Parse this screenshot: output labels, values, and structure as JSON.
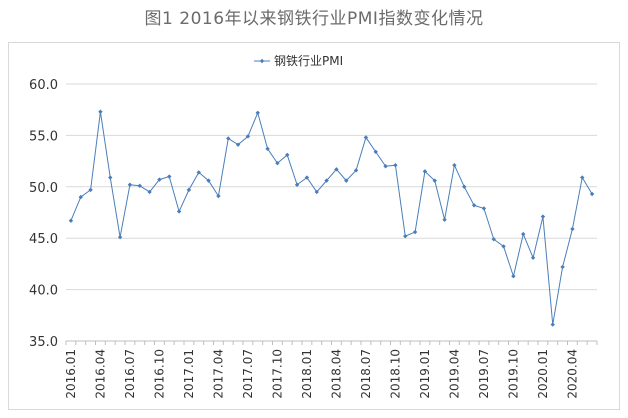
{
  "title": "图1  2016年以来钢铁行业PMI指数变化情况",
  "chart_data": {
    "type": "line",
    "title": "图1  2016年以来钢铁行业PMI指数变化情况",
    "xlabel": "",
    "ylabel": "",
    "ylim": [
      35,
      60
    ],
    "y_ticks": [
      "35.0",
      "40.0",
      "45.0",
      "50.0",
      "55.0",
      "60.0"
    ],
    "grid": "horizontal",
    "legend_position": "top-center",
    "x_tick_labels": [
      "2016.01",
      "2016.04",
      "2016.07",
      "2016.10",
      "2017.01",
      "2017.04",
      "2017.07",
      "2017.10",
      "2018.01",
      "2018.04",
      "2018.07",
      "2018.10",
      "2019.01",
      "2019.04",
      "2019.07",
      "2019.10",
      "2020.01",
      "2020.04"
    ],
    "x": [
      "2016.01",
      "2016.02",
      "2016.03",
      "2016.04",
      "2016.05",
      "2016.06",
      "2016.07",
      "2016.08",
      "2016.09",
      "2016.10",
      "2016.11",
      "2016.12",
      "2017.01",
      "2017.02",
      "2017.03",
      "2017.04",
      "2017.05",
      "2017.06",
      "2017.07",
      "2017.08",
      "2017.09",
      "2017.10",
      "2017.11",
      "2017.12",
      "2018.01",
      "2018.02",
      "2018.03",
      "2018.04",
      "2018.05",
      "2018.06",
      "2018.07",
      "2018.08",
      "2018.09",
      "2018.10",
      "2018.11",
      "2018.12",
      "2019.01",
      "2019.02",
      "2019.03",
      "2019.04",
      "2019.05",
      "2019.06",
      "2019.07",
      "2019.08",
      "2019.09",
      "2019.10",
      "2019.11",
      "2019.12",
      "2020.01",
      "2020.02",
      "2020.03",
      "2020.04",
      "2020.05",
      "2020.06"
    ],
    "series": [
      {
        "name": "钢铁行业PMI",
        "color": "#4a7ebb",
        "values": [
          46.7,
          49.0,
          49.7,
          57.3,
          50.9,
          45.1,
          50.2,
          50.1,
          49.5,
          50.7,
          51.0,
          47.6,
          49.7,
          51.4,
          50.6,
          49.1,
          54.7,
          54.1,
          54.9,
          57.2,
          53.7,
          52.3,
          53.1,
          50.2,
          50.9,
          49.5,
          50.6,
          51.7,
          50.6,
          51.6,
          54.8,
          53.4,
          52.0,
          52.1,
          45.2,
          45.6,
          51.5,
          50.6,
          46.8,
          52.1,
          50.0,
          48.2,
          47.9,
          44.9,
          44.2,
          41.3,
          45.4,
          43.1,
          47.1,
          36.6,
          42.2,
          45.9,
          50.9,
          49.3
        ]
      }
    ]
  }
}
